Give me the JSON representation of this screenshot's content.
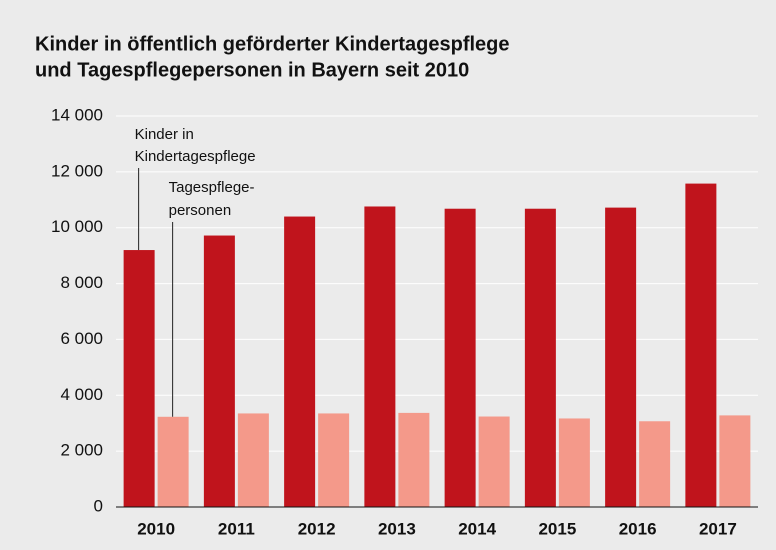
{
  "chart_data": {
    "type": "bar",
    "title": [
      "Kinder in öffentlich geförderter Kindertagespflege",
      "und Tagespflegepersonen in Bayern seit 2010"
    ],
    "categories": [
      "2010",
      "2011",
      "2012",
      "2013",
      "2014",
      "2015",
      "2016",
      "2017"
    ],
    "series": [
      {
        "label": [
          "Kinder in",
          "Kindertagespflege"
        ],
        "color": "#c0141c",
        "values": [
          9200,
          9720,
          10400,
          10760,
          10680,
          10680,
          10720,
          11580
        ]
      },
      {
        "label": [
          "Tagespflege-",
          "personen"
        ],
        "color": "#f4998a",
        "values": [
          3230,
          3350,
          3350,
          3370,
          3240,
          3170,
          3070,
          3280
        ]
      }
    ],
    "ylim": [
      0,
      14000
    ],
    "yticks": [
      0,
      {
        "value": 2000,
        "label": "2 000"
      },
      {
        "value": 4000,
        "label": "4 000"
      },
      {
        "value": 6000,
        "label": "6 000"
      },
      {
        "value": 8000,
        "label": "8 000"
      },
      {
        "value": 10000,
        "label": "10 000"
      },
      {
        "value": 12000,
        "label": "12 000"
      },
      {
        "value": 14000,
        "label": "14 000"
      }
    ],
    "grid": true
  }
}
